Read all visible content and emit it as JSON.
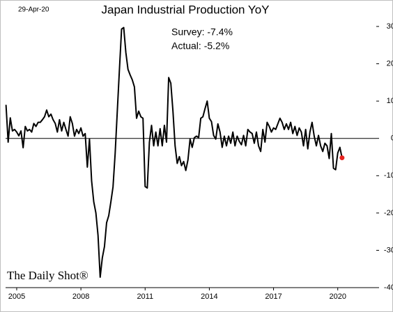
{
  "chart_data": {
    "type": "line",
    "title": "Japan Industrial Production YoY",
    "date": "29-Apr-20",
    "annotations": [
      "Survey: -7.4%",
      "Actual:  -5.2%"
    ],
    "watermark": "The Daily Shot®",
    "x": [
      2004.5,
      2004.6,
      2004.7,
      2004.8,
      2004.9,
      2005.0,
      2005.1,
      2005.2,
      2005.3,
      2005.4,
      2005.5,
      2005.6,
      2005.7,
      2005.8,
      2005.9,
      2006.0,
      2006.1,
      2006.2,
      2006.3,
      2006.4,
      2006.5,
      2006.6,
      2006.7,
      2006.8,
      2006.9,
      2007.0,
      2007.1,
      2007.2,
      2007.3,
      2007.4,
      2007.5,
      2007.6,
      2007.7,
      2007.8,
      2007.9,
      2008.0,
      2008.1,
      2008.2,
      2008.3,
      2008.4,
      2008.5,
      2008.6,
      2008.7,
      2008.8,
      2008.9,
      2009.0,
      2009.1,
      2009.2,
      2009.3,
      2009.4,
      2009.5,
      2009.6,
      2009.7,
      2009.8,
      2009.9,
      2010.0,
      2010.1,
      2010.2,
      2010.3,
      2010.4,
      2010.5,
      2010.6,
      2010.7,
      2010.8,
      2010.9,
      2011.0,
      2011.1,
      2011.2,
      2011.3,
      2011.4,
      2011.5,
      2011.6,
      2011.7,
      2011.8,
      2011.9,
      2012.0,
      2012.1,
      2012.2,
      2012.3,
      2012.4,
      2012.5,
      2012.6,
      2012.7,
      2012.8,
      2012.9,
      2013.0,
      2013.1,
      2013.2,
      2013.3,
      2013.4,
      2013.5,
      2013.6,
      2013.7,
      2013.8,
      2013.9,
      2014.0,
      2014.1,
      2014.2,
      2014.3,
      2014.4,
      2014.5,
      2014.6,
      2014.7,
      2014.8,
      2014.9,
      2015.0,
      2015.1,
      2015.2,
      2015.3,
      2015.4,
      2015.5,
      2015.6,
      2015.7,
      2015.8,
      2015.9,
      2016.0,
      2016.1,
      2016.2,
      2016.3,
      2016.4,
      2016.5,
      2016.6,
      2016.7,
      2016.8,
      2016.9,
      2017.0,
      2017.1,
      2017.2,
      2017.3,
      2017.4,
      2017.5,
      2017.6,
      2017.7,
      2017.8,
      2017.9,
      2018.0,
      2018.1,
      2018.2,
      2018.3,
      2018.4,
      2018.5,
      2018.6,
      2018.7,
      2018.8,
      2018.9,
      2019.0,
      2019.1,
      2019.2,
      2019.3,
      2019.4,
      2019.5,
      2019.6,
      2019.7,
      2019.8,
      2019.9,
      2020.0,
      2020.1,
      2020.2
    ],
    "series": [
      {
        "color": "#000000",
        "values": [
          9,
          -1,
          5.5,
          2,
          2.4,
          1.7,
          0.7,
          2,
          -2.5,
          3.2,
          2,
          2.4,
          1.7,
          4,
          3.2,
          4.3,
          4.3,
          5,
          5.8,
          7.6,
          5.8,
          6.5,
          5,
          4,
          1.7,
          5,
          2,
          4.3,
          2.4,
          0.6,
          5.8,
          4,
          0.6,
          2.4,
          1.3,
          2.8,
          0.6,
          1.3,
          -7.7,
          -0.2,
          -11.4,
          -17,
          -20,
          -26,
          -37.2,
          -32,
          -29,
          -22.6,
          -20.7,
          -17,
          -13,
          -4,
          7.3,
          18.5,
          29.3,
          29.7,
          23,
          18.5,
          17,
          15.7,
          13.8,
          5.4,
          7.3,
          5.8,
          5.4,
          -12.9,
          -13.3,
          -1,
          3.5,
          -2,
          1.7,
          -2,
          2.6,
          -2,
          3.5,
          -1,
          16.3,
          14.8,
          7.3,
          -2,
          -6.7,
          -4.9,
          -7.3,
          -6.2,
          -8.6,
          -5.8,
          -0.2,
          -2.4,
          0.2,
          0.6,
          0.2,
          5.4,
          5.8,
          8,
          10,
          5.4,
          4.5,
          0.8,
          -0.2,
          3.9,
          1.7,
          -2.4,
          0.6,
          -2,
          0.6,
          -1.3,
          1.7,
          -2,
          0.6,
          -0.8,
          -1.7,
          0.8,
          -2,
          2.4,
          1.7,
          1.3,
          -1.3,
          1.7,
          -2,
          -3.5,
          2.4,
          -1,
          4.3,
          3.2,
          1.7,
          2.8,
          2.4,
          3.9,
          5.4,
          4.3,
          2.4,
          3.9,
          2.4,
          4.3,
          1.3,
          3.2,
          0.8,
          2.8,
          1.7,
          -2,
          2.4,
          -2.8,
          1.7,
          4.3,
          0.6,
          -2,
          0.8,
          -2,
          -3.5,
          -1.3,
          -2,
          -5.4,
          1.3,
          -8,
          -8.4,
          -3.9,
          -2.4,
          -5.2
        ]
      }
    ],
    "last_point_color": "#e8231f",
    "xlim": [
      2004.48,
      2021.8
    ],
    "xticks": [
      2005,
      2008,
      2011,
      2014,
      2017,
      2020
    ],
    "ylim": [
      -40,
      30
    ],
    "yticks": [
      {
        "value": 30,
        "label": "30.0"
      },
      {
        "value": 20,
        "label": "20.0"
      },
      {
        "value": 10,
        "label": "10.0"
      },
      {
        "value": 0,
        "label": "0.0"
      },
      {
        "value": -10,
        "label": "-10.0"
      },
      {
        "value": -20,
        "label": "-20.0"
      },
      {
        "value": -30,
        "label": "-30.0"
      },
      {
        "value": -40,
        "label": "-40.0"
      }
    ]
  }
}
